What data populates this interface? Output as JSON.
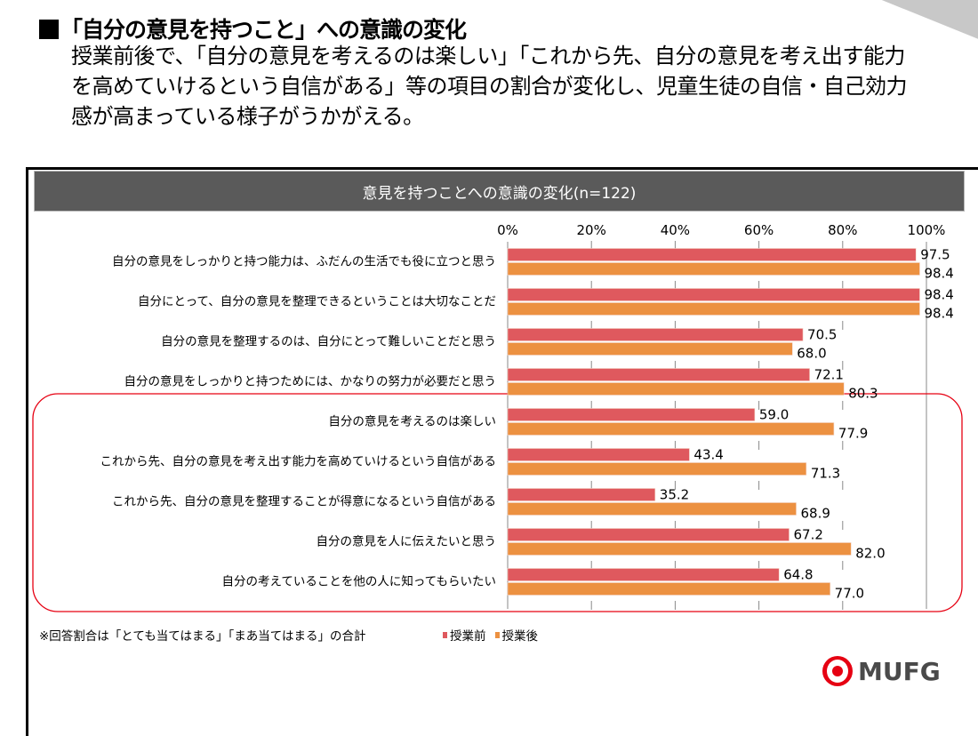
{
  "heading": "「自分の意見を持つこと」への意識の変化",
  "description": "授業前後で、「自分の意見を考えるのは楽しい」「これから先、自分の意見を考え出す能力を高めていけるという自信がある」等の項目の割合が変化し、児童生徒の自信・自己効力感が高まっている様子がうかがえる。",
  "note": "※回答割合は「とても当てはまる」「まあ当てはまる」の合計",
  "logo": {
    "text": "MUFG",
    "icon": "mufg-logo-icon"
  },
  "colors": {
    "before": "#df595e",
    "after": "#ec9141",
    "header_bg": "#5a5a5a",
    "highlight": "#e60012"
  },
  "chart_data": {
    "type": "bar",
    "orientation": "horizontal",
    "title": "意見を持つことへの意識の変化(n=122)",
    "xlabel": "",
    "ylabel": "",
    "xlim": [
      0,
      100
    ],
    "x_ticks": [
      "0%",
      "20%",
      "40%",
      "60%",
      "80%",
      "100%"
    ],
    "grid": true,
    "legend_position": "bottom-center",
    "categories": [
      "自分の意見をしっかりと持つ能力は、ふだんの生活でも役に立つと思う",
      "自分にとって、自分の意見を整理できるということは大切なことだ",
      "自分の意見を整理するのは、自分にとって難しいことだと思う",
      "自分の意見をしっかりと持つためには、かなりの努力が必要だと思う",
      "自分の意見を考えるのは楽しい",
      "これから先、自分の意見を考え出す能力を高めていけるという自信がある",
      "これから先、自分の意見を整理することが得意になるという自信がある",
      "自分の意見を人に伝えたいと思う",
      "自分の考えていることを他の人に知ってもらいたい"
    ],
    "series": [
      {
        "name": "授業前",
        "color": "#df595e",
        "values": [
          97.5,
          98.4,
          70.5,
          72.1,
          59.0,
          43.4,
          35.2,
          67.2,
          64.8
        ]
      },
      {
        "name": "授業後",
        "color": "#ec9141",
        "values": [
          98.4,
          98.4,
          68.0,
          80.3,
          77.9,
          71.3,
          68.9,
          82.0,
          77.0
        ]
      }
    ],
    "highlighted_categories": [
      4,
      5,
      6,
      7,
      8
    ]
  }
}
